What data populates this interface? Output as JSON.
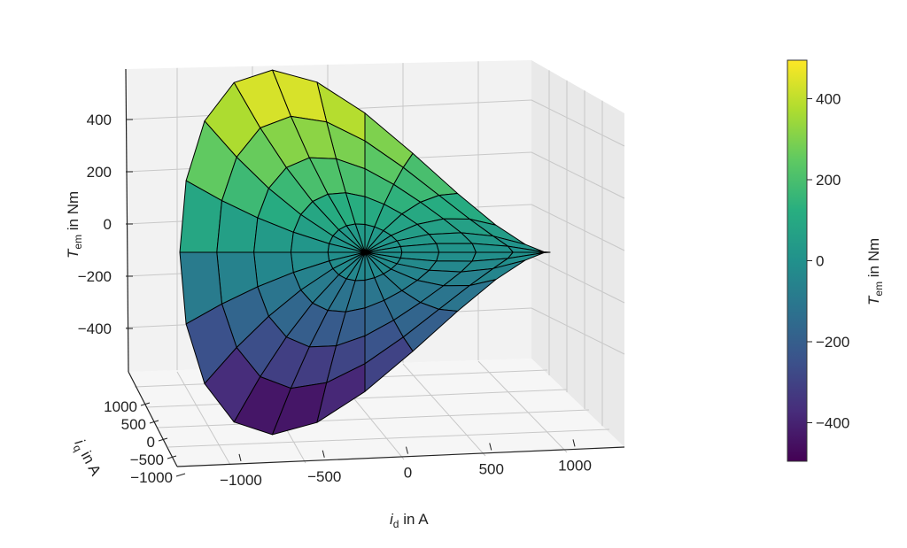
{
  "chart_data": {
    "type": "surface3d",
    "title": "",
    "xlabel": "i_d in A",
    "xlabel_main": "i",
    "xlabel_sub": "d",
    "xlabel_rest": " in A",
    "ylabel_main": "i",
    "ylabel_sub": "q",
    "ylabel_rest": " in A",
    "zlabel_main": "T",
    "zlabel_sub": "em",
    "zlabel_rest": " in Nm",
    "xticks": [
      "−1000",
      "−500",
      "0",
      "500",
      "1000"
    ],
    "xtick_values": [
      -1000,
      -500,
      0,
      500,
      1000
    ],
    "yticks": [
      "1000",
      "500",
      "0",
      "−500",
      "−1000"
    ],
    "ytick_values": [
      1000,
      500,
      0,
      -500,
      -1000
    ],
    "zticks": [
      "400",
      "200",
      "0",
      "−200",
      "−400"
    ],
    "ztick_values": [
      400,
      200,
      0,
      -200,
      -400
    ],
    "grid": true,
    "colormap": "viridis",
    "colorbar": {
      "label_main": "T",
      "label_sub": "em",
      "label_rest": " in Nm",
      "range": [
        -495,
        495
      ],
      "ticks": [
        "400",
        "200",
        "0",
        "−200",
        "−400"
      ],
      "tick_values": [
        400,
        200,
        0,
        -200,
        -400
      ],
      "placement": "right"
    },
    "surface": {
      "current_radius_A": [
        0,
        220,
        440,
        660,
        880,
        1100
      ],
      "current_angle_deg": [
        0,
        15,
        30,
        45,
        60,
        75,
        90,
        105,
        120,
        135,
        150,
        165,
        180,
        195,
        210,
        225,
        240,
        255,
        270,
        285,
        300,
        315,
        330,
        345,
        360
      ],
      "torque_model_Nm": {
        "k_iq": 0.35,
        "k_id_iq": -0.00035
      }
    }
  }
}
